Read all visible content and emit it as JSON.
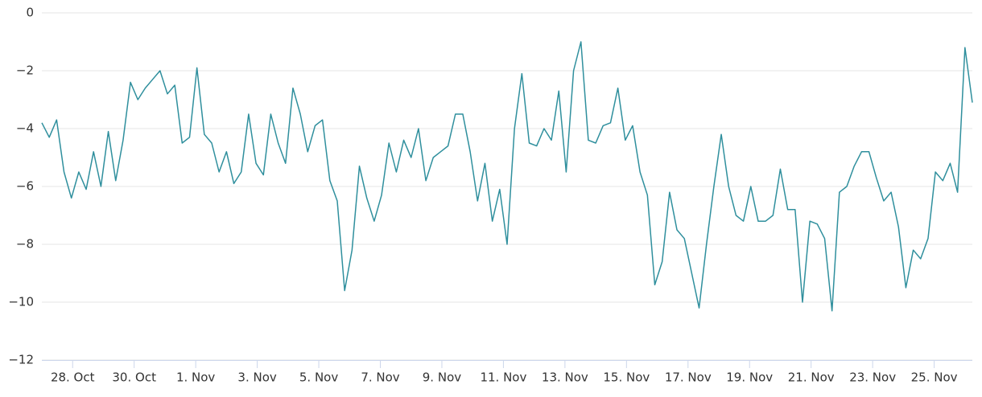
{
  "chart_data": {
    "type": "line",
    "x": [
      27,
      27.24,
      27.48,
      27.72,
      27.96,
      28.2,
      28.44,
      28.68,
      28.92,
      29.16,
      29.4,
      29.64,
      29.88,
      30.12,
      30.36,
      30.6,
      30.84,
      31.08,
      31.32,
      31.56,
      31.8,
      32.04,
      32.28,
      32.52,
      32.76,
      33,
      33.24,
      33.48,
      33.72,
      33.96,
      34.2,
      34.44,
      34.68,
      34.92,
      35.16,
      35.4,
      35.64,
      35.88,
      36.12,
      36.36,
      36.6,
      36.84,
      37.08,
      37.32,
      37.56,
      37.8,
      38.04,
      38.28,
      38.52,
      38.76,
      39,
      39.24,
      39.48,
      39.72,
      39.96,
      40.2,
      40.44,
      40.68,
      40.92,
      41.16,
      41.4,
      41.64,
      41.88,
      42.12,
      42.36,
      42.6,
      42.84,
      43.08,
      43.32,
      43.56,
      43.8,
      44.04,
      44.28,
      44.52,
      44.76,
      45,
      45.24,
      45.48,
      45.72,
      45.96,
      46.2,
      46.44,
      46.68,
      46.92,
      47.16,
      47.4,
      47.64,
      47.88,
      48.12,
      48.36,
      48.6,
      48.84,
      49.08,
      49.32,
      49.56,
      49.8,
      50.04,
      50.28,
      50.52,
      50.76,
      51,
      51.24,
      51.48,
      51.72,
      51.96,
      52.2,
      52.44,
      52.68,
      52.92,
      53.16,
      53.4,
      53.64,
      53.88,
      54.12,
      54.36,
      54.6,
      54.84,
      55.08,
      55.32,
      55.56,
      55.8,
      56.04,
      56.28,
      56.52,
      56.76,
      57,
      57.24
    ],
    "series": [
      {
        "color": "#2f8f9d",
        "values": [
          -3.8,
          -4.3,
          -3.7,
          -5.5,
          -6.4,
          -5.5,
          -6.1,
          -4.8,
          -6.0,
          -4.1,
          -5.8,
          -4.4,
          -2.4,
          -3.0,
          -2.6,
          -2.3,
          -2.0,
          -2.8,
          -2.5,
          -4.5,
          -4.3,
          -1.9,
          -4.2,
          -4.5,
          -5.5,
          -4.8,
          -5.9,
          -5.5,
          -3.5,
          -5.2,
          -5.6,
          -3.5,
          -4.5,
          -5.2,
          -2.6,
          -3.5,
          -4.8,
          -3.9,
          -3.7,
          -5.8,
          -6.5,
          -9.6,
          -8.2,
          -5.3,
          -6.4,
          -7.2,
          -6.3,
          -4.5,
          -5.5,
          -4.4,
          -5.0,
          -4.0,
          -5.8,
          -5.0,
          -4.8,
          -4.6,
          -3.5,
          -3.5,
          -4.8,
          -6.5,
          -5.2,
          -7.2,
          -6.1,
          -8.0,
          -4.0,
          -2.1,
          -4.5,
          -4.6,
          -4.0,
          -4.4,
          -2.7,
          -5.5,
          -2.0,
          -1.0,
          -4.4,
          -4.5,
          -3.9,
          -3.8,
          -2.6,
          -4.4,
          -3.9,
          -5.5,
          -6.3,
          -9.4,
          -8.6,
          -6.2,
          -7.5,
          -7.8,
          -9.0,
          -10.2,
          -8.0,
          -6.0,
          -4.2,
          -6.0,
          -7.0,
          -7.2,
          -6.0,
          -7.2,
          -7.2,
          -7.0,
          -5.4,
          -6.8,
          -6.8,
          -10.0,
          -7.2,
          -7.3,
          -7.8,
          -10.3,
          -6.2,
          -6.0,
          -5.3,
          -4.8,
          -4.8,
          -5.7,
          -6.5,
          -6.2,
          -7.4,
          -9.5,
          -8.2,
          -8.5,
          -7.8,
          -5.5,
          -5.8,
          -5.2,
          -6.2,
          -1.2,
          -3.1
        ]
      }
    ],
    "xlim": [
      27,
      57.24
    ],
    "xticks": [
      {
        "value": 28,
        "label": "28. Oct"
      },
      {
        "value": 30,
        "label": "30. Oct"
      },
      {
        "value": 32,
        "label": "1. Nov"
      },
      {
        "value": 34,
        "label": "3. Nov"
      },
      {
        "value": 36,
        "label": "5. Nov"
      },
      {
        "value": 38,
        "label": "7. Nov"
      },
      {
        "value": 40,
        "label": "9. Nov"
      },
      {
        "value": 42,
        "label": "11. Nov"
      },
      {
        "value": 44,
        "label": "13. Nov"
      },
      {
        "value": 46,
        "label": "15. Nov"
      },
      {
        "value": 48,
        "label": "17. Nov"
      },
      {
        "value": 50,
        "label": "19. Nov"
      },
      {
        "value": 52,
        "label": "21. Nov"
      },
      {
        "value": 54,
        "label": "23. Nov"
      },
      {
        "value": 56,
        "label": "25. Nov"
      }
    ],
    "ylim": [
      -12,
      0
    ],
    "yticks": [
      0,
      {
        "value": -2,
        "label": "−2"
      },
      {
        "value": -4,
        "label": "−4"
      },
      {
        "value": -6,
        "label": "−6"
      },
      {
        "value": -8,
        "label": "−8"
      },
      {
        "value": -10,
        "label": "−10"
      },
      {
        "value": -12,
        "label": "−12"
      }
    ],
    "grid": true
  }
}
